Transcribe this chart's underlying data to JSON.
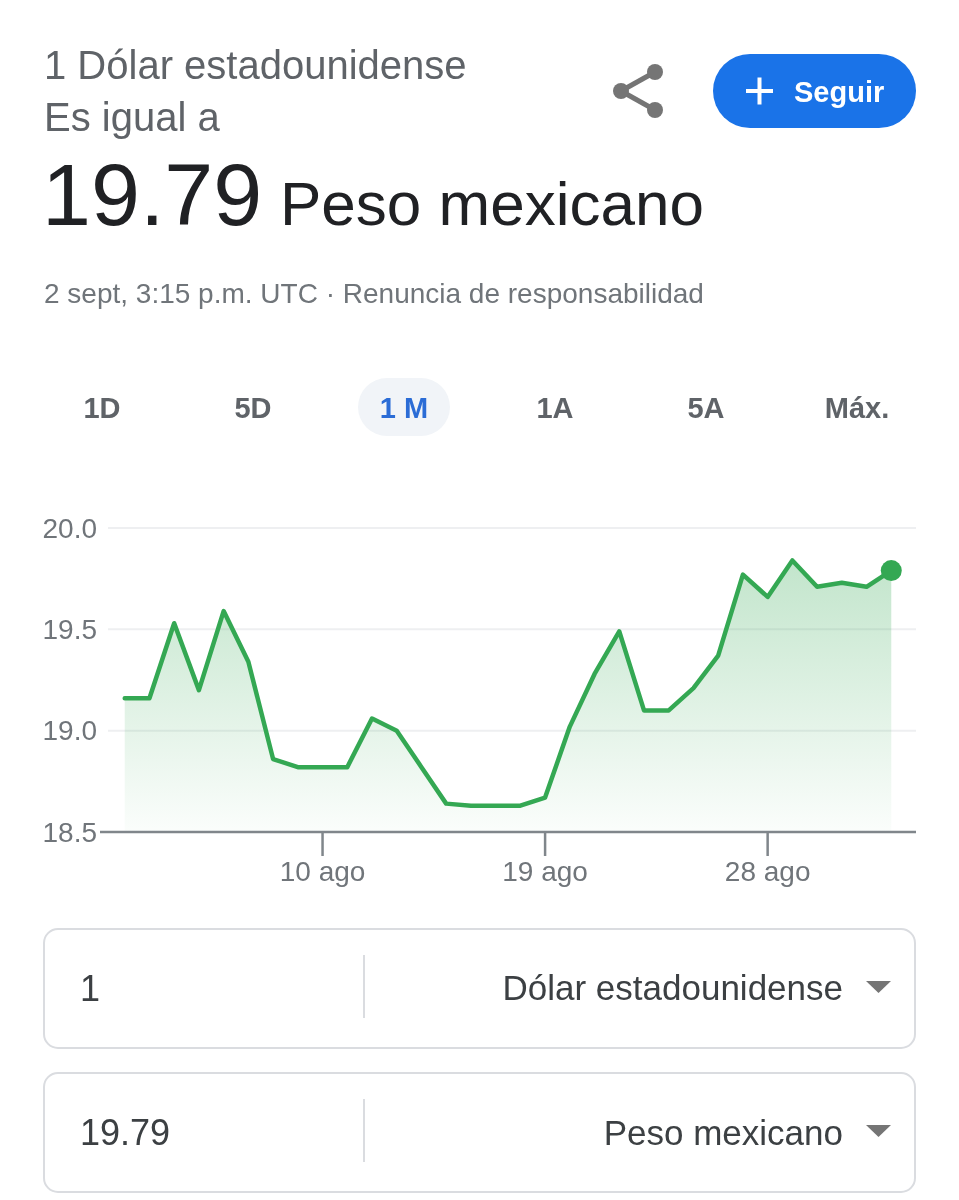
{
  "chart_data": {
    "type": "area",
    "annotations": [
      "1 Dólar estadounidense",
      "Es igual a",
      "19.79",
      "Peso mexicano",
      "2 sept, 3:15 p.m. UTC · Renuncia de responsabilidad",
      "Seguir",
      "1D",
      "5D",
      "1 M",
      "1A",
      "5A",
      "Máx.",
      "1",
      "Dólar estadounidense",
      "19.79",
      "Peso mexicano"
    ],
    "x": [
      "--08-02",
      "--08-03",
      "--08-04",
      "--08-05",
      "--08-06",
      "--08-07",
      "--08-08",
      "--08-09",
      "--08-10",
      "--08-11",
      "--08-12",
      "--08-13",
      "--08-14",
      "--08-15",
      "--08-16",
      "--08-17",
      "--08-18",
      "--08-19",
      "--08-20",
      "--08-21",
      "--08-22",
      "--08-23",
      "--08-24",
      "--08-25",
      "--08-26",
      "--08-27",
      "--08-28",
      "--08-29",
      "--08-30",
      "--08-31",
      "--09-01",
      "--09-02"
    ],
    "series": [
      {
        "color": "#34a853",
        "values": [
          19.16,
          19.16,
          19.53,
          19.2,
          19.59,
          19.34,
          18.86,
          18.82,
          18.82,
          18.82,
          19.06,
          19.0,
          18.82,
          18.64,
          18.63,
          18.63,
          18.63,
          18.67,
          19.02,
          19.28,
          19.49,
          19.1,
          19.1,
          19.21,
          19.37,
          19.77,
          19.66,
          19.84,
          19.71,
          19.73,
          19.71,
          19.79
        ]
      },
      {
        "type": "scatter",
        "x": [
          "--09-02"
        ],
        "color": "#34a853",
        "values": [
          19.79
        ],
        "marker": "circle"
      }
    ],
    "xlim": [
      "--08-01",
      "--09-03"
    ],
    "xticks": [
      {
        "value": "--08-10",
        "label": "10 ago"
      },
      {
        "value": "--08-19",
        "label": "19 ago"
      },
      {
        "value": "--08-28",
        "label": "28 ago"
      }
    ],
    "ylim": [
      18.5,
      20
    ],
    "yticks": [
      18.5,
      {
        "value": 19,
        "label": "19.0"
      },
      19.5,
      {
        "value": 20,
        "label": "20.0"
      }
    ],
    "grid": "y"
  }
}
